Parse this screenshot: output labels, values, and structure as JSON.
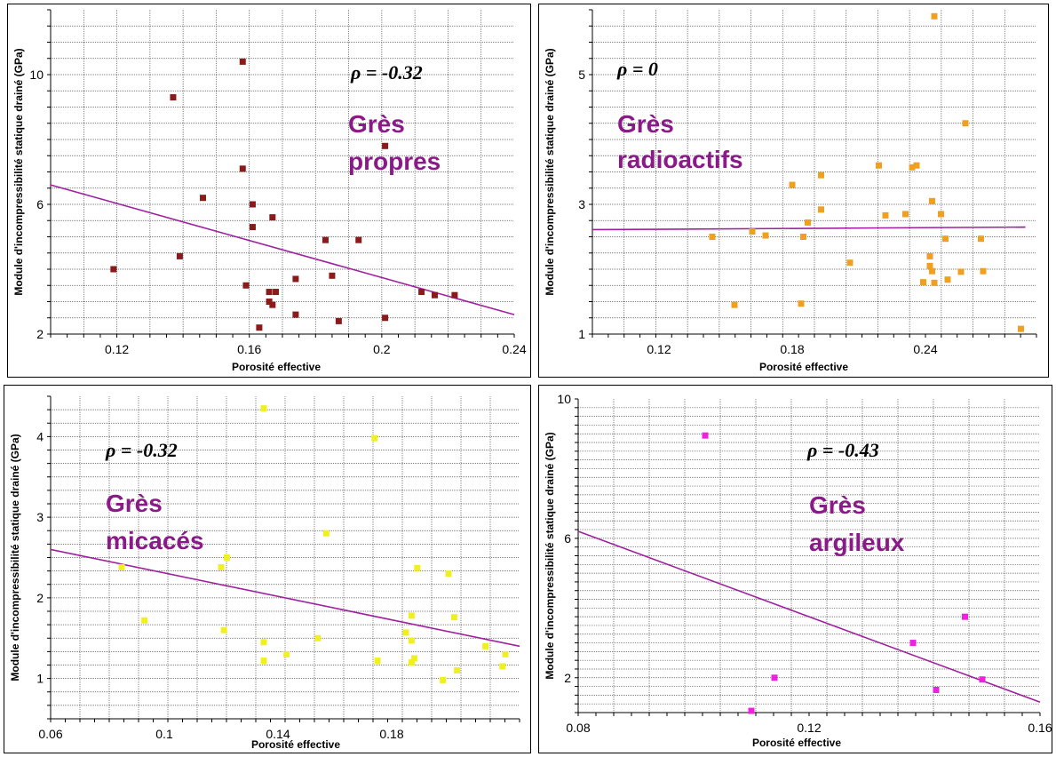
{
  "chart_data": [
    {
      "type": "scatter",
      "xlabel": "Porosité effective",
      "ylabel": "Module d'incompressibilité statique drainé (GPa)",
      "xlim": [
        0.1,
        0.24
      ],
      "ylim": [
        2,
        12
      ],
      "x_ticks": [
        "0.12",
        "0.16",
        "0.2",
        "0.24"
      ],
      "y_ticks": [
        "2",
        "6",
        "10"
      ],
      "grid": true,
      "annotations": {
        "rho": "ρ = -0.32",
        "group_line1": "Grès",
        "group_line2": "propres"
      },
      "point_color": "#8b1a1a",
      "line_color": "#a020a0",
      "fit_line": {
        "x": [
          0.1,
          0.24
        ],
        "y": [
          6.6,
          2.6
        ]
      },
      "points": [
        {
          "x": 0.119,
          "y": 4.0
        },
        {
          "x": 0.137,
          "y": 9.3
        },
        {
          "x": 0.139,
          "y": 4.4
        },
        {
          "x": 0.146,
          "y": 6.2
        },
        {
          "x": 0.158,
          "y": 10.4
        },
        {
          "x": 0.158,
          "y": 7.1
        },
        {
          "x": 0.159,
          "y": 3.5
        },
        {
          "x": 0.161,
          "y": 6.0
        },
        {
          "x": 0.161,
          "y": 5.3
        },
        {
          "x": 0.163,
          "y": 2.2
        },
        {
          "x": 0.166,
          "y": 3.3
        },
        {
          "x": 0.166,
          "y": 3.0
        },
        {
          "x": 0.167,
          "y": 2.9
        },
        {
          "x": 0.167,
          "y": 5.6
        },
        {
          "x": 0.168,
          "y": 3.3
        },
        {
          "x": 0.174,
          "y": 3.7
        },
        {
          "x": 0.174,
          "y": 2.6
        },
        {
          "x": 0.183,
          "y": 4.9
        },
        {
          "x": 0.185,
          "y": 3.8
        },
        {
          "x": 0.187,
          "y": 2.4
        },
        {
          "x": 0.193,
          "y": 4.9
        },
        {
          "x": 0.201,
          "y": 7.8
        },
        {
          "x": 0.201,
          "y": 2.5
        },
        {
          "x": 0.212,
          "y": 3.3
        },
        {
          "x": 0.216,
          "y": 3.2
        },
        {
          "x": 0.222,
          "y": 3.2
        }
      ]
    },
    {
      "type": "scatter",
      "xlabel": "Porosité effective",
      "ylabel": "Module d'incompressibilité statique drainé (GPa)",
      "xlim": [
        0.09,
        0.29
      ],
      "ylim": [
        1,
        6
      ],
      "x_ticks": [
        "0.12",
        "0.18",
        "0.24"
      ],
      "y_ticks": [
        "1",
        "3",
        "5"
      ],
      "grid": true,
      "annotations": {
        "rho": "ρ = 0",
        "group_line1": "Grès",
        "group_line2": "radioactifs"
      },
      "point_color": "#f0a020",
      "line_color": "#a020a0",
      "fit_line": {
        "x": [
          0.09,
          0.285
        ],
        "y": [
          2.61,
          2.65
        ]
      },
      "points": [
        {
          "x": 0.144,
          "y": 2.5
        },
        {
          "x": 0.154,
          "y": 1.45
        },
        {
          "x": 0.162,
          "y": 2.58
        },
        {
          "x": 0.168,
          "y": 2.52
        },
        {
          "x": 0.18,
          "y": 3.3
        },
        {
          "x": 0.184,
          "y": 1.47
        },
        {
          "x": 0.185,
          "y": 2.5
        },
        {
          "x": 0.187,
          "y": 2.72
        },
        {
          "x": 0.193,
          "y": 3.45
        },
        {
          "x": 0.193,
          "y": 2.92
        },
        {
          "x": 0.206,
          "y": 2.1
        },
        {
          "x": 0.219,
          "y": 3.6
        },
        {
          "x": 0.222,
          "y": 2.83
        },
        {
          "x": 0.231,
          "y": 2.85
        },
        {
          "x": 0.234,
          "y": 3.57
        },
        {
          "x": 0.236,
          "y": 3.6
        },
        {
          "x": 0.239,
          "y": 1.8
        },
        {
          "x": 0.242,
          "y": 2.2
        },
        {
          "x": 0.242,
          "y": 2.05
        },
        {
          "x": 0.243,
          "y": 1.97
        },
        {
          "x": 0.243,
          "y": 3.05
        },
        {
          "x": 0.244,
          "y": 5.9
        },
        {
          "x": 0.244,
          "y": 1.79
        },
        {
          "x": 0.247,
          "y": 2.85
        },
        {
          "x": 0.249,
          "y": 2.47
        },
        {
          "x": 0.25,
          "y": 1.84
        },
        {
          "x": 0.256,
          "y": 1.96
        },
        {
          "x": 0.258,
          "y": 4.25
        },
        {
          "x": 0.265,
          "y": 2.47
        },
        {
          "x": 0.266,
          "y": 1.97
        },
        {
          "x": 0.283,
          "y": 1.08
        }
      ]
    },
    {
      "type": "scatter",
      "xlabel": "Porosité effective",
      "ylabel": "Module d'incompressibilité statique drainé (GPa)",
      "xlim": [
        0.06,
        0.225
      ],
      "ylim": [
        0.5,
        4.5
      ],
      "x_ticks": [
        "0.06",
        "0.1",
        "0.14",
        "0.18"
      ],
      "y_ticks": [
        "1",
        "2",
        "3",
        "4"
      ],
      "grid": true,
      "annotations": {
        "rho": "ρ = -0.32",
        "group_line1": "Grès",
        "group_line2": "micacés"
      },
      "point_color": "#f0f020",
      "line_color": "#a020a0",
      "fit_line": {
        "x": [
          0.06,
          0.225
        ],
        "y": [
          2.6,
          1.4
        ]
      },
      "points": [
        {
          "x": 0.085,
          "y": 2.38
        },
        {
          "x": 0.093,
          "y": 1.72
        },
        {
          "x": 0.12,
          "y": 2.38
        },
        {
          "x": 0.121,
          "y": 1.6
        },
        {
          "x": 0.122,
          "y": 2.5
        },
        {
          "x": 0.135,
          "y": 4.35
        },
        {
          "x": 0.135,
          "y": 1.45
        },
        {
          "x": 0.135,
          "y": 1.22
        },
        {
          "x": 0.143,
          "y": 1.3
        },
        {
          "x": 0.154,
          "y": 1.5
        },
        {
          "x": 0.157,
          "y": 2.8
        },
        {
          "x": 0.174,
          "y": 3.98
        },
        {
          "x": 0.175,
          "y": 1.22
        },
        {
          "x": 0.185,
          "y": 1.57
        },
        {
          "x": 0.187,
          "y": 1.47
        },
        {
          "x": 0.187,
          "y": 1.78
        },
        {
          "x": 0.187,
          "y": 1.2
        },
        {
          "x": 0.188,
          "y": 1.25
        },
        {
          "x": 0.189,
          "y": 2.37
        },
        {
          "x": 0.198,
          "y": 0.98
        },
        {
          "x": 0.2,
          "y": 2.3
        },
        {
          "x": 0.202,
          "y": 1.76
        },
        {
          "x": 0.203,
          "y": 1.1
        },
        {
          "x": 0.213,
          "y": 1.4
        },
        {
          "x": 0.219,
          "y": 1.15
        },
        {
          "x": 0.22,
          "y": 1.3
        }
      ]
    },
    {
      "type": "scatter",
      "xlabel": "Porosité effective",
      "ylabel": "Module d'incompressibilité statique drainé (GPa)",
      "xlim": [
        0.08,
        0.16
      ],
      "ylim": [
        1,
        10
      ],
      "x_ticks": [
        "0.08",
        "0.12",
        "0.16"
      ],
      "y_ticks": [
        "2",
        "6",
        "10"
      ],
      "grid": true,
      "annotations": {
        "rho": "ρ = -0.43",
        "group_line1": "Grès",
        "group_line2": "argileux"
      },
      "point_color": "#f020e0",
      "line_color": "#a020a0",
      "fit_line": {
        "x": [
          0.08,
          0.16
        ],
        "y": [
          6.2,
          1.3
        ]
      },
      "points": [
        {
          "x": 0.102,
          "y": 8.95
        },
        {
          "x": 0.11,
          "y": 1.05
        },
        {
          "x": 0.114,
          "y": 2.0
        },
        {
          "x": 0.138,
          "y": 3.0
        },
        {
          "x": 0.142,
          "y": 1.65
        },
        {
          "x": 0.147,
          "y": 3.75
        },
        {
          "x": 0.15,
          "y": 1.95
        }
      ]
    }
  ]
}
